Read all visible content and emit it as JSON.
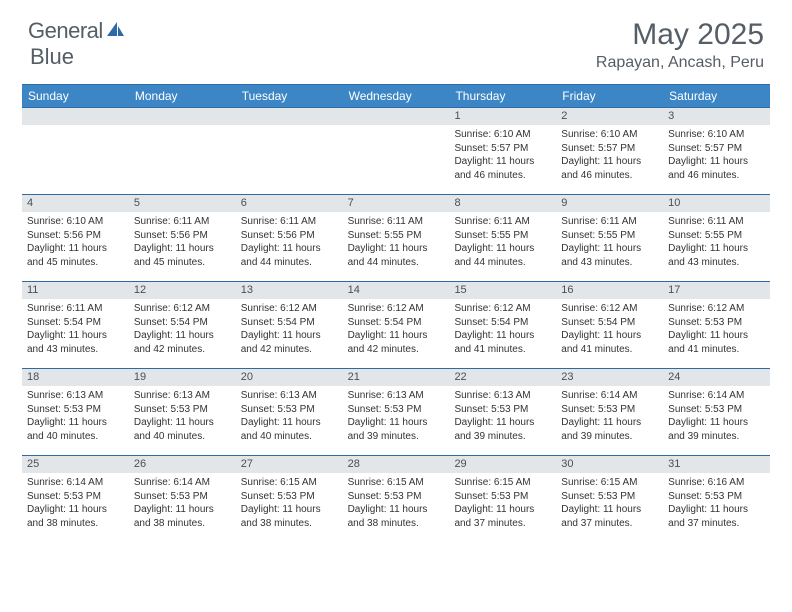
{
  "logo": {
    "text_left": "General",
    "text_right": "Blue"
  },
  "title": "May 2025",
  "location": "Rapayan, Ancash, Peru",
  "colors": {
    "header_bar": "#3d86c6",
    "border": "#2d6aa8",
    "day_num_bg": "#e3e6e9",
    "text_muted": "#555d66",
    "logo_blue": "#2d6aa8"
  },
  "days_of_week": [
    "Sunday",
    "Monday",
    "Tuesday",
    "Wednesday",
    "Thursday",
    "Friday",
    "Saturday"
  ],
  "weeks": [
    [
      {
        "n": "",
        "sr": "",
        "ss": "",
        "dl": ""
      },
      {
        "n": "",
        "sr": "",
        "ss": "",
        "dl": ""
      },
      {
        "n": "",
        "sr": "",
        "ss": "",
        "dl": ""
      },
      {
        "n": "",
        "sr": "",
        "ss": "",
        "dl": ""
      },
      {
        "n": "1",
        "sr": "Sunrise: 6:10 AM",
        "ss": "Sunset: 5:57 PM",
        "dl": "Daylight: 11 hours and 46 minutes."
      },
      {
        "n": "2",
        "sr": "Sunrise: 6:10 AM",
        "ss": "Sunset: 5:57 PM",
        "dl": "Daylight: 11 hours and 46 minutes."
      },
      {
        "n": "3",
        "sr": "Sunrise: 6:10 AM",
        "ss": "Sunset: 5:57 PM",
        "dl": "Daylight: 11 hours and 46 minutes."
      }
    ],
    [
      {
        "n": "4",
        "sr": "Sunrise: 6:10 AM",
        "ss": "Sunset: 5:56 PM",
        "dl": "Daylight: 11 hours and 45 minutes."
      },
      {
        "n": "5",
        "sr": "Sunrise: 6:11 AM",
        "ss": "Sunset: 5:56 PM",
        "dl": "Daylight: 11 hours and 45 minutes."
      },
      {
        "n": "6",
        "sr": "Sunrise: 6:11 AM",
        "ss": "Sunset: 5:56 PM",
        "dl": "Daylight: 11 hours and 44 minutes."
      },
      {
        "n": "7",
        "sr": "Sunrise: 6:11 AM",
        "ss": "Sunset: 5:55 PM",
        "dl": "Daylight: 11 hours and 44 minutes."
      },
      {
        "n": "8",
        "sr": "Sunrise: 6:11 AM",
        "ss": "Sunset: 5:55 PM",
        "dl": "Daylight: 11 hours and 44 minutes."
      },
      {
        "n": "9",
        "sr": "Sunrise: 6:11 AM",
        "ss": "Sunset: 5:55 PM",
        "dl": "Daylight: 11 hours and 43 minutes."
      },
      {
        "n": "10",
        "sr": "Sunrise: 6:11 AM",
        "ss": "Sunset: 5:55 PM",
        "dl": "Daylight: 11 hours and 43 minutes."
      }
    ],
    [
      {
        "n": "11",
        "sr": "Sunrise: 6:11 AM",
        "ss": "Sunset: 5:54 PM",
        "dl": "Daylight: 11 hours and 43 minutes."
      },
      {
        "n": "12",
        "sr": "Sunrise: 6:12 AM",
        "ss": "Sunset: 5:54 PM",
        "dl": "Daylight: 11 hours and 42 minutes."
      },
      {
        "n": "13",
        "sr": "Sunrise: 6:12 AM",
        "ss": "Sunset: 5:54 PM",
        "dl": "Daylight: 11 hours and 42 minutes."
      },
      {
        "n": "14",
        "sr": "Sunrise: 6:12 AM",
        "ss": "Sunset: 5:54 PM",
        "dl": "Daylight: 11 hours and 42 minutes."
      },
      {
        "n": "15",
        "sr": "Sunrise: 6:12 AM",
        "ss": "Sunset: 5:54 PM",
        "dl": "Daylight: 11 hours and 41 minutes."
      },
      {
        "n": "16",
        "sr": "Sunrise: 6:12 AM",
        "ss": "Sunset: 5:54 PM",
        "dl": "Daylight: 11 hours and 41 minutes."
      },
      {
        "n": "17",
        "sr": "Sunrise: 6:12 AM",
        "ss": "Sunset: 5:53 PM",
        "dl": "Daylight: 11 hours and 41 minutes."
      }
    ],
    [
      {
        "n": "18",
        "sr": "Sunrise: 6:13 AM",
        "ss": "Sunset: 5:53 PM",
        "dl": "Daylight: 11 hours and 40 minutes."
      },
      {
        "n": "19",
        "sr": "Sunrise: 6:13 AM",
        "ss": "Sunset: 5:53 PM",
        "dl": "Daylight: 11 hours and 40 minutes."
      },
      {
        "n": "20",
        "sr": "Sunrise: 6:13 AM",
        "ss": "Sunset: 5:53 PM",
        "dl": "Daylight: 11 hours and 40 minutes."
      },
      {
        "n": "21",
        "sr": "Sunrise: 6:13 AM",
        "ss": "Sunset: 5:53 PM",
        "dl": "Daylight: 11 hours and 39 minutes."
      },
      {
        "n": "22",
        "sr": "Sunrise: 6:13 AM",
        "ss": "Sunset: 5:53 PM",
        "dl": "Daylight: 11 hours and 39 minutes."
      },
      {
        "n": "23",
        "sr": "Sunrise: 6:14 AM",
        "ss": "Sunset: 5:53 PM",
        "dl": "Daylight: 11 hours and 39 minutes."
      },
      {
        "n": "24",
        "sr": "Sunrise: 6:14 AM",
        "ss": "Sunset: 5:53 PM",
        "dl": "Daylight: 11 hours and 39 minutes."
      }
    ],
    [
      {
        "n": "25",
        "sr": "Sunrise: 6:14 AM",
        "ss": "Sunset: 5:53 PM",
        "dl": "Daylight: 11 hours and 38 minutes."
      },
      {
        "n": "26",
        "sr": "Sunrise: 6:14 AM",
        "ss": "Sunset: 5:53 PM",
        "dl": "Daylight: 11 hours and 38 minutes."
      },
      {
        "n": "27",
        "sr": "Sunrise: 6:15 AM",
        "ss": "Sunset: 5:53 PM",
        "dl": "Daylight: 11 hours and 38 minutes."
      },
      {
        "n": "28",
        "sr": "Sunrise: 6:15 AM",
        "ss": "Sunset: 5:53 PM",
        "dl": "Daylight: 11 hours and 38 minutes."
      },
      {
        "n": "29",
        "sr": "Sunrise: 6:15 AM",
        "ss": "Sunset: 5:53 PM",
        "dl": "Daylight: 11 hours and 37 minutes."
      },
      {
        "n": "30",
        "sr": "Sunrise: 6:15 AM",
        "ss": "Sunset: 5:53 PM",
        "dl": "Daylight: 11 hours and 37 minutes."
      },
      {
        "n": "31",
        "sr": "Sunrise: 6:16 AM",
        "ss": "Sunset: 5:53 PM",
        "dl": "Daylight: 11 hours and 37 minutes."
      }
    ]
  ]
}
